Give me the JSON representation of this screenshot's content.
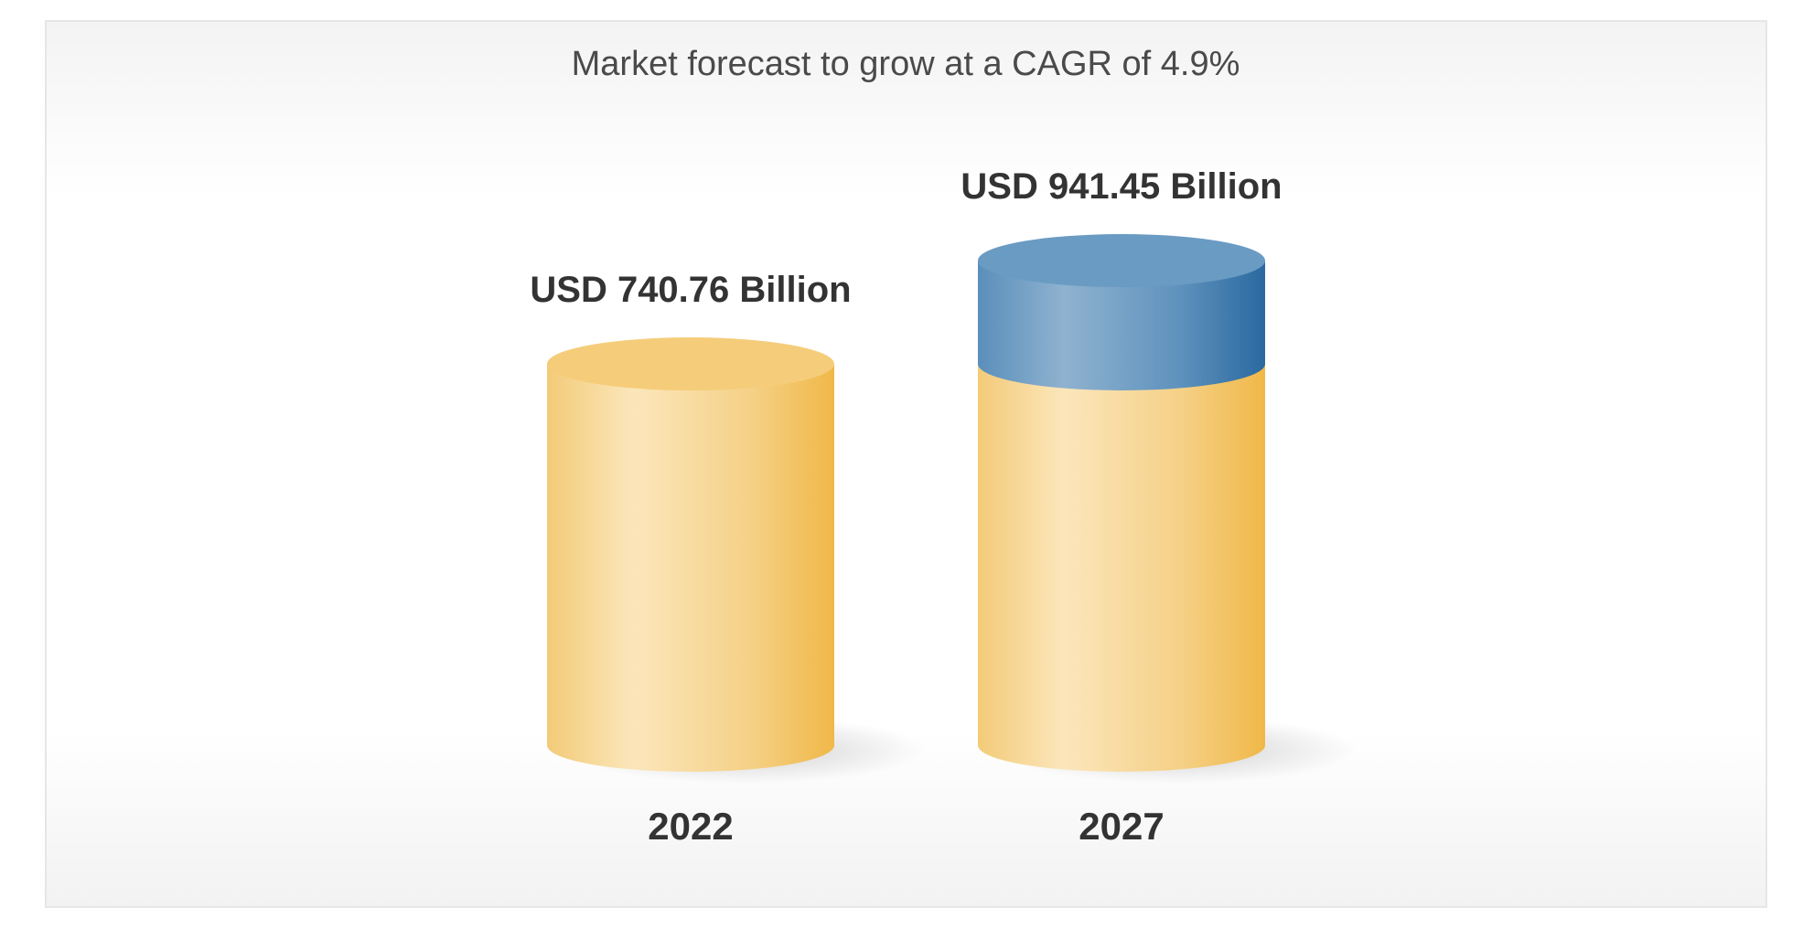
{
  "chart_data": {
    "type": "bar",
    "style": "3d-cylinder",
    "title": "Market forecast to grow at a CAGR of 4.9%",
    "categories": [
      "2022",
      "2027"
    ],
    "values": [
      740.76,
      941.45
    ],
    "value_labels": [
      "USD 740.76 Billion",
      "USD 941.45 Billion"
    ],
    "unit": "USD Billion",
    "xlabel": "",
    "ylabel": "",
    "grid": false,
    "legend": "none",
    "colors": {
      "base": "#f2c060",
      "growth": "#4f86b4"
    }
  }
}
